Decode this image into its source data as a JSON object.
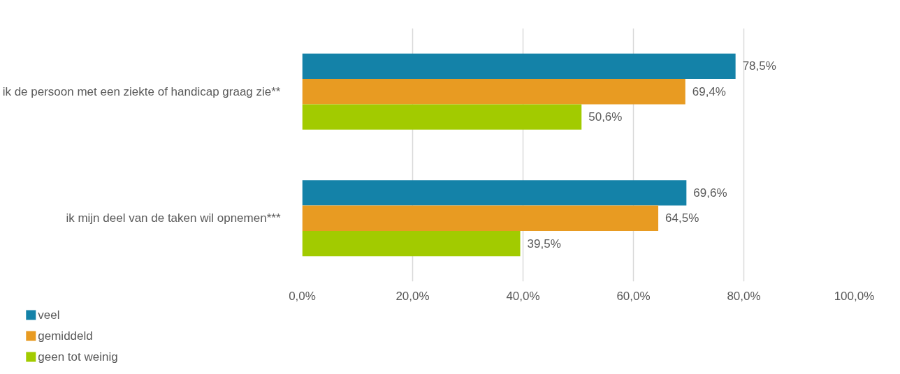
{
  "chart_data": {
    "type": "bar",
    "orientation": "horizontal",
    "categories": [
      "ik de persoon met een ziekte of handicap graag zie**",
      "ik mijn deel van de taken wil opnemen***"
    ],
    "series": [
      {
        "name": "veel",
        "color": "#1482a8",
        "values": [
          78.5,
          69.6
        ],
        "value_labels": [
          "78,5%",
          "69,6%"
        ]
      },
      {
        "name": "gemiddeld",
        "color": "#e89b22",
        "values": [
          69.4,
          64.5
        ],
        "value_labels": [
          "69,4%",
          "64,5%"
        ]
      },
      {
        "name": "geen tot weinig",
        "color": "#a2cb00",
        "values": [
          50.6,
          39.5
        ],
        "value_labels": [
          "50,6%",
          "39,5%"
        ]
      }
    ],
    "xlim": [
      0,
      100
    ],
    "xticks": [
      {
        "value": 0,
        "label": "0,0%"
      },
      {
        "value": 20,
        "label": "20,0%"
      },
      {
        "value": 40,
        "label": "40,0%"
      },
      {
        "value": 60,
        "label": "60,0%"
      },
      {
        "value": 80,
        "label": "80,0%"
      },
      {
        "value": 100,
        "label": "100,0%"
      }
    ],
    "grid": "x",
    "legend": "bottom left"
  }
}
